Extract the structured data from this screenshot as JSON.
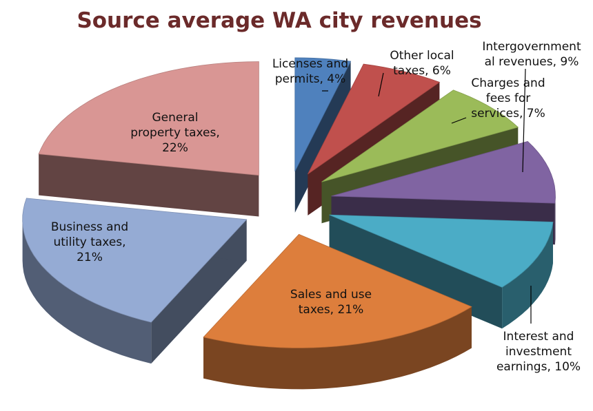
{
  "chart_data": {
    "type": "pie",
    "title": "Source average WA city revenues",
    "title_color": "#6b2a2a",
    "exploded": true,
    "three_d": true,
    "slices": [
      {
        "name": "Licenses and permits",
        "value": 4,
        "label_lines": [
          "Licenses and",
          "permits, 4%"
        ],
        "color": "#4f81bd"
      },
      {
        "name": "Other local taxes",
        "value": 6,
        "label_lines": [
          "Other local",
          "taxes, 6%"
        ],
        "color": "#c0504d"
      },
      {
        "name": "Charges and fees for services",
        "value": 7,
        "label_lines": [
          "Charges and",
          "fees for",
          "services, 7%"
        ],
        "color": "#9bbb59"
      },
      {
        "name": "Intergovernmental revenues",
        "value": 9,
        "label_lines": [
          "Intergovernment",
          "al revenues, 9%"
        ],
        "color": "#8064a2"
      },
      {
        "name": "Interest and investment earnings",
        "value": 10,
        "label_lines": [
          "Interest and",
          "investment",
          "earnings, 10%"
        ],
        "color": "#4bacc6"
      },
      {
        "name": "Sales and use taxes",
        "value": 21,
        "label_lines": [
          "Sales and use",
          "taxes, 21%"
        ],
        "color": "#dd7e3c"
      },
      {
        "name": "Business and utility taxes",
        "value": 21,
        "label_lines": [
          "Business and",
          "utility taxes,",
          "21%"
        ],
        "color": "#95abd4"
      },
      {
        "name": "General property taxes",
        "value": 22,
        "label_lines": [
          "General",
          "property taxes,",
          "22%"
        ],
        "color": "#d99694"
      }
    ]
  }
}
